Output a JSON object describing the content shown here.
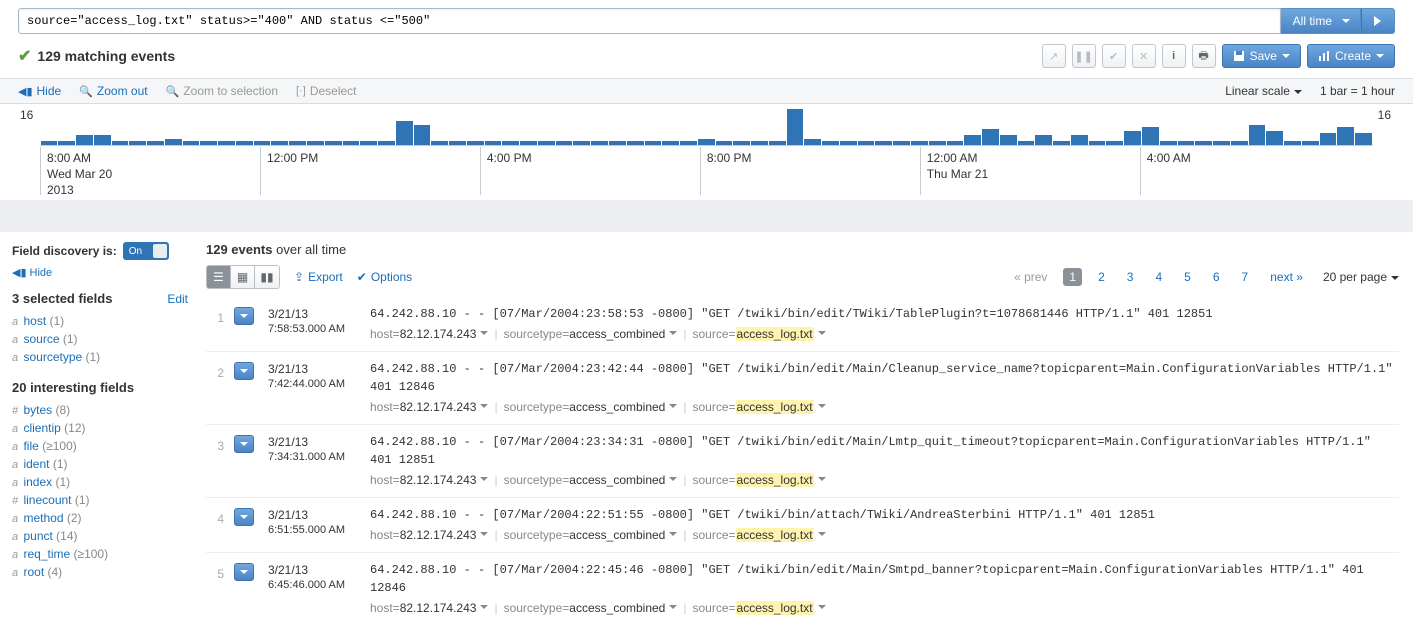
{
  "search": {
    "query": "source=\"access_log.txt\" status>=\"400\" AND status <=\"500\"",
    "time_range": "All time"
  },
  "results_summary": {
    "count_text": "129 matching events"
  },
  "action_buttons": {
    "save_label": "Save",
    "create_label": "Create"
  },
  "timeline": {
    "toolbar": {
      "hide": "Hide",
      "zoom_out": "Zoom out",
      "zoom_to_selection": "Zoom to selection",
      "deselect": "Deselect",
      "scale_label": "Linear scale",
      "bar_label": "1 bar = 1 hour"
    },
    "ymax": "16",
    "bars_heights": [
      4,
      4,
      10,
      10,
      4,
      4,
      4,
      6,
      4,
      4,
      4,
      4,
      4,
      4,
      4,
      4,
      4,
      4,
      4,
      4,
      24,
      20,
      4,
      4,
      4,
      4,
      4,
      4,
      4,
      4,
      4,
      4,
      4,
      4,
      4,
      4,
      4,
      6,
      4,
      4,
      4,
      4,
      36,
      6,
      4,
      4,
      4,
      4,
      4,
      4,
      4,
      4,
      10,
      16,
      10,
      4,
      10,
      4,
      10,
      4,
      4,
      14,
      18,
      4,
      4,
      4,
      4,
      4,
      20,
      14,
      4,
      4,
      12,
      18,
      12
    ],
    "bar_color": "#2f74b5",
    "xticks": [
      {
        "pct": 0,
        "label": "8:00 AM",
        "line2": "Wed Mar 20",
        "line3": "2013"
      },
      {
        "pct": 16.5,
        "label": "12:00 PM"
      },
      {
        "pct": 33,
        "label": "4:00 PM"
      },
      {
        "pct": 49.5,
        "label": "8:00 PM"
      },
      {
        "pct": 66,
        "label": "12:00 AM",
        "line2": "Thu Mar 21"
      },
      {
        "pct": 82.5,
        "label": "4:00 AM"
      }
    ]
  },
  "sidebar": {
    "fd_label": "Field discovery is:",
    "fd_toggle": "On",
    "hide": "Hide",
    "selected_heading": "3 selected fields",
    "edit": "Edit",
    "selected_fields": [
      {
        "prefix": "a",
        "name": "host",
        "count": "(1)"
      },
      {
        "prefix": "a",
        "name": "source",
        "count": "(1)"
      },
      {
        "prefix": "a",
        "name": "sourcetype",
        "count": "(1)"
      }
    ],
    "interesting_heading": "20 interesting fields",
    "interesting_fields": [
      {
        "prefix": "#",
        "name": "bytes",
        "count": "(8)"
      },
      {
        "prefix": "a",
        "name": "clientip",
        "count": "(12)"
      },
      {
        "prefix": "a",
        "name": "file",
        "count": "(≥100)"
      },
      {
        "prefix": "a",
        "name": "ident",
        "count": "(1)"
      },
      {
        "prefix": "a",
        "name": "index",
        "count": "(1)"
      },
      {
        "prefix": "#",
        "name": "linecount",
        "count": "(1)"
      },
      {
        "prefix": "a",
        "name": "method",
        "count": "(2)"
      },
      {
        "prefix": "a",
        "name": "punct",
        "count": "(14)"
      },
      {
        "prefix": "a",
        "name": "req_time",
        "count": "(≥100)"
      },
      {
        "prefix": "a",
        "name": "root",
        "count": "(4)"
      }
    ]
  },
  "results": {
    "heading_count": "129 events",
    "heading_suffix": "over all time",
    "toolbar": {
      "export": "Export",
      "options": "Options"
    },
    "pager": {
      "prev": "« prev",
      "pages": [
        "1",
        "2",
        "3",
        "4",
        "5",
        "6",
        "7"
      ],
      "current": "1",
      "next": "next »",
      "per_page": "20 per page"
    },
    "events": [
      {
        "n": "1",
        "date": "3/21/13",
        "time": "7:58:53.000 AM",
        "raw": "64.242.88.10 - - [07/Mar/2004:23:58:53 -0800] \"GET /twiki/bin/edit/TWiki/TablePlugin?t=1078681446 HTTP/1.1\" 401 12851",
        "host": "82.12.174.243",
        "sourcetype": "access_combined",
        "source": "access_log.txt"
      },
      {
        "n": "2",
        "date": "3/21/13",
        "time": "7:42:44.000 AM",
        "raw": "64.242.88.10 - - [07/Mar/2004:23:42:44 -0800] \"GET /twiki/bin/edit/Main/Cleanup_service_name?topicparent=Main.ConfigurationVariables HTTP/1.1\" 401 12846",
        "host": "82.12.174.243",
        "sourcetype": "access_combined",
        "source": "access_log.txt"
      },
      {
        "n": "3",
        "date": "3/21/13",
        "time": "7:34:31.000 AM",
        "raw": "64.242.88.10 - - [07/Mar/2004:23:34:31 -0800] \"GET /twiki/bin/edit/Main/Lmtp_quit_timeout?topicparent=Main.ConfigurationVariables HTTP/1.1\" 401 12851",
        "host": "82.12.174.243",
        "sourcetype": "access_combined",
        "source": "access_log.txt"
      },
      {
        "n": "4",
        "date": "3/21/13",
        "time": "6:51:55.000 AM",
        "raw": "64.242.88.10 - - [07/Mar/2004:22:51:55 -0800] \"GET /twiki/bin/attach/TWiki/AndreaSterbini HTTP/1.1\" 401 12851",
        "host": "82.12.174.243",
        "sourcetype": "access_combined",
        "source": "access_log.txt"
      },
      {
        "n": "5",
        "date": "3/21/13",
        "time": "6:45:46.000 AM",
        "raw": "64.242.88.10 - - [07/Mar/2004:22:45:46 -0800] \"GET /twiki/bin/edit/Main/Smtpd_banner?topicparent=Main.ConfigurationVariables HTTP/1.1\" 401 12846",
        "host": "82.12.174.243",
        "sourcetype": "access_combined",
        "source": "access_log.txt"
      }
    ]
  }
}
